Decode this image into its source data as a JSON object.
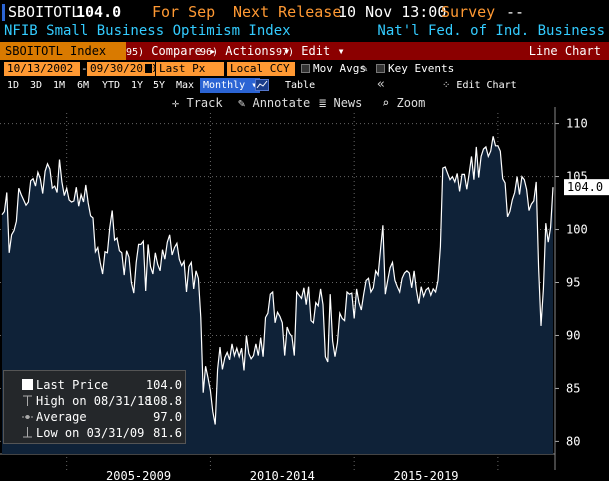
{
  "header": {
    "ticker": "SBOITOTL",
    "last_value": "104.0",
    "for_label": "For Sep",
    "next_release_label": "Next Release",
    "next_release_value": "10 Nov 13:00",
    "survey_label": "Survey",
    "survey_value": "--"
  },
  "description": {
    "name": "NFIB Small Business Optimism Index",
    "source": "Nat'l Fed. of Ind. Business"
  },
  "toolbar": {
    "index_label": "SBOITOTL Index",
    "compare_num": "95)",
    "compare_label": "Compare",
    "compare_arrow": "▸",
    "actions_num": "96)",
    "actions_label": "Actions",
    "actions_arrow": "▾",
    "edit_num": "97)",
    "edit_label": "Edit",
    "edit_arrow": "▾",
    "chart_type": "Line Chart"
  },
  "range": {
    "start_date": "10/13/2002",
    "dash": "-",
    "end_date": "09/30/2020",
    "price_field": "Last Px",
    "currency": "Local CCY",
    "mov_avgs_label": "Mov Avgs",
    "key_events_label": "Key Events"
  },
  "periods": {
    "items": [
      "1D",
      "3D",
      "1M",
      "6M",
      "YTD",
      "1Y",
      "5Y",
      "Max"
    ],
    "frequency": "Monthly",
    "frequency_arrow": "▾",
    "table_label": "Table",
    "collapse_glyph": "«",
    "edit_chart_label": "Edit Chart"
  },
  "chart_tools": {
    "track_label": "Track",
    "annotate_label": "Annotate",
    "news_label": "News",
    "zoom_label": "Zoom"
  },
  "legend": {
    "last_price_label": "Last Price",
    "last_price_value": "104.0",
    "high_label": "High on 08/31/18",
    "high_value": "108.8",
    "average_label": "Average",
    "average_value": "97.0",
    "low_label": "Low on 03/31/09",
    "low_value": "81.6"
  },
  "colors": {
    "line": "#ffffff",
    "fill": "#0f2238",
    "axis_text": "#ffffff",
    "grid": "#666666",
    "accent_orange": "#ff9933",
    "toolbar_red": "#8b0000",
    "desc_blue": "#33ccff"
  },
  "chart_data": {
    "type": "area",
    "ylim": [
      79,
      111
    ],
    "y_ticks": [
      80,
      85,
      90,
      95,
      100,
      105,
      110
    ],
    "x_tick_labels": [
      "2005-2009",
      "2010-2014",
      "2015-2019"
    ],
    "last_label": "104.0",
    "x_start": "2002-10",
    "x_end": "2020-09",
    "values": [
      101.4,
      101.7,
      103.5,
      97.8,
      99.5,
      99.9,
      100.8,
      103.9,
      103.3,
      102.8,
      102.3,
      102.6,
      104.6,
      104.8,
      104.1,
      105.4,
      104.8,
      103.4,
      105.5,
      106.2,
      105.7,
      103.9,
      104.1,
      103.5,
      106.6,
      104.5,
      103.2,
      103.9,
      102.8,
      102.6,
      102.7,
      104.0,
      102.2,
      103.3,
      102.6,
      104.2,
      102.5,
      101.3,
      101.1,
      97.9,
      98.3,
      96.9,
      95.8,
      97.9,
      97.8,
      100.2,
      101.8,
      99.0,
      99.2,
      98.0,
      97.8,
      95.7,
      98.0,
      97.4,
      95.0,
      94.0,
      96.9,
      98.6,
      98.6,
      98.9,
      94.2,
      98.6,
      96.5,
      95.8,
      97.8,
      96.7,
      96.1,
      98.1,
      97.2,
      98.8,
      99.5,
      97.6,
      98.3,
      98.7,
      97.2,
      96.6,
      97.0,
      94.1,
      96.5,
      96.9,
      94.4,
      96.1,
      95.4,
      91.7,
      84.6,
      87.1,
      86.0,
      84.8,
      82.8,
      81.6,
      86.8,
      88.9,
      86.8,
      87.9,
      88.4,
      87.7,
      89.2,
      88.1,
      88.8,
      88.0,
      88.8,
      86.7,
      90.0,
      88.3,
      87.8,
      88.1,
      89.2,
      88.1,
      89.8,
      88.0,
      91.7,
      92.1,
      93.9,
      94.1,
      91.2,
      92.2,
      91.8,
      91.2,
      88.1,
      90.8,
      90.2,
      89.9,
      88.1,
      94.1,
      93.8,
      93.5,
      94.5,
      92.9,
      94.6,
      91.4,
      91.2,
      93.1,
      92.8,
      94.4,
      92.9,
      88.0,
      87.5,
      93.9,
      89.5,
      88.0,
      89.3,
      92.1,
      91.6,
      91.4,
      94.1,
      93.9,
      94.0,
      91.6,
      94.4,
      93.1,
      92.4,
      93.9,
      95.2,
      95.4,
      94.1,
      94.5,
      96.1,
      95.7,
      98.1,
      100.4,
      93.9,
      95.2,
      96.4,
      96.9,
      95.2,
      94.6,
      94.1,
      95.4,
      95.9,
      96.1,
      95.9,
      94.5,
      96.1,
      94.3,
      93.0,
      94.6,
      93.7,
      94.3,
      94.5,
      93.8,
      94.4,
      94.1,
      95.2,
      98.4,
      105.8,
      105.9,
      105.3,
      104.7,
      105.0,
      104.5,
      105.3,
      103.6,
      105.2,
      105.2,
      103.8,
      105.3,
      106.9,
      104.7,
      107.8,
      104.9,
      106.9,
      107.6,
      107.8,
      106.9,
      107.4,
      108.8,
      107.9,
      107.9,
      107.4,
      104.8,
      104.4,
      101.2,
      101.7,
      102.8,
      103.5,
      105.0,
      103.3,
      105.0,
      104.7,
      103.8,
      101.8,
      102.4,
      102.7,
      104.5,
      96.4,
      90.9,
      94.4,
      100.6,
      98.8,
      100.2,
      104.0
    ]
  }
}
